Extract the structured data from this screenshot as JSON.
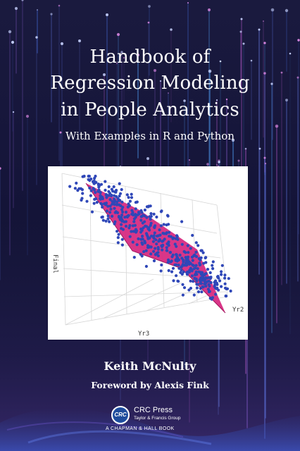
{
  "book": {
    "title_line1": "Handbook of",
    "title_line2": "Regression Modeling",
    "title_line3": "in People Analytics",
    "subtitle": "With Examples in R and Python",
    "author": "Keith McNulty",
    "foreword": "Foreword by Alexis Fink"
  },
  "figure": {
    "axis_label_vertical": "Final",
    "axis_label_right": "Yr2",
    "axis_label_bottom": "Yr3"
  },
  "publisher": {
    "logo_text": "CRC",
    "name": "CRC Press",
    "group": "Taylor & Francis Group",
    "tagline": "A CHAPMAN & HALL BOOK"
  },
  "colors": {
    "background": "#141433",
    "plane": "#d6257e",
    "points": "#2f47b8",
    "logo": "#1e4c9c"
  }
}
